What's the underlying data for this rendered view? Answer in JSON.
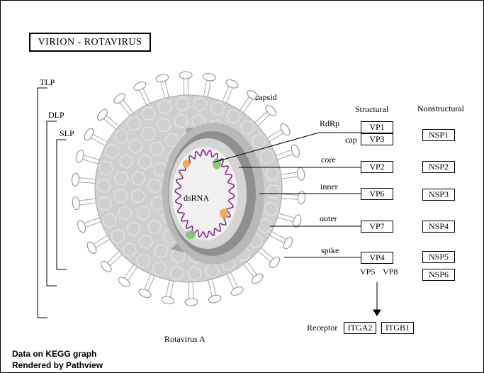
{
  "title": "VIRION  -  ROTAVIRUS",
  "brackets": {
    "tlp": "TLP",
    "dlp": "DLP",
    "slp": "SLP"
  },
  "virion": {
    "capsid": "capsid",
    "genome": "dsRNA",
    "caption": "Rotavirus A"
  },
  "columns": {
    "structural": "Structural",
    "nonstructural": "Nonstructural"
  },
  "layers": {
    "rdrp": "RdRp",
    "cap": "cap",
    "core": "core",
    "inner": "inner",
    "outer": "outer",
    "spike": "spike"
  },
  "structural_proteins": {
    "vp1": "VP1",
    "vp3": "VP3",
    "vp2": "VP2",
    "vp6": "VP6",
    "vp7": "VP7",
    "vp4": "VP4",
    "vp5": "VP5",
    "vp8": "VP8"
  },
  "nonstructural_proteins": {
    "nsp1": "NSP1",
    "nsp2": "NSP2",
    "nsp3": "NSP3",
    "nsp4": "NSP4",
    "nsp5": "NSP5",
    "nsp6": "NSP6"
  },
  "receptor": {
    "label": "Receptor",
    "itga2": "ITGA2",
    "itgb1": "ITGB1"
  },
  "footer": {
    "line1": "Data on KEGG graph",
    "line2": "Rendered by Pathview"
  },
  "colors": {
    "shell_outer": "#cfcfcf",
    "shell_mid": "#b5b5b5",
    "shell_dark": "#7a7a7a",
    "core_fill": "#eeeeee",
    "rna": "#8a2a8a",
    "green": "#7fbf6a",
    "orange": "#f0a848"
  }
}
